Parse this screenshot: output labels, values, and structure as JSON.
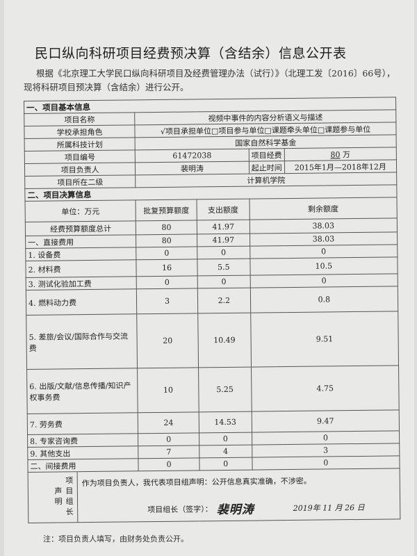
{
  "title": "民口纵向科研项目经费预决算（含结余）信息公开表",
  "intro": "根据《北京理工大学民口纵向科研项目及经费管理办法（试行）》（北理工发〔2016〕66号），现将科研项目预决算（含结余）进行公开。",
  "basic": {
    "section": "一、项目基本信息",
    "name_label": "项目名称",
    "name": "视频中事件的内容分析语义与描述",
    "role_label": "学校承担角色",
    "role": "√项目承担单位□项目参与单位□课题牵头单位□课题参与单位",
    "plan_label": "所属科技计划",
    "plan": "国家自然科学基金",
    "number_label": "项目编号",
    "number": "61472038",
    "funding_label": "项目经费",
    "funding": "80",
    "funding_unit": "万",
    "leader_label": "项目负责人",
    "leader": "裴明涛",
    "period_label": "起止时间",
    "period": "2015年1月—2018年12月",
    "dept_label": "项目所在二级",
    "dept": "计算机学院"
  },
  "budget": {
    "section": "二、项目决算信息",
    "headers": [
      "单位：万元",
      "批复预算额度",
      "支出额度",
      "剩余额度"
    ],
    "rows": [
      [
        "经费预算额度总计",
        "80",
        "41.97",
        "38.03"
      ],
      [
        "一、直接费用",
        "80",
        "41.97",
        "38.03"
      ],
      [
        "1. 设备费",
        "0",
        "0",
        "0"
      ],
      [
        "2. 材料费",
        "16",
        "5.5",
        "10.5"
      ],
      [
        "3. 测试化验加工费",
        "0",
        "0",
        "0"
      ],
      [
        "4. 燃料动力费",
        "3",
        "2.2",
        "0.8"
      ],
      [
        "5. 差旅/会议/国际合作与交流费",
        "20",
        "10.49",
        "9.51"
      ],
      [
        "6. 出版/文献/信息传播/知识产权事务费",
        "10",
        "5.25",
        "4.75"
      ],
      [
        "7. 劳务费",
        "24",
        "14.53",
        "9.47"
      ],
      [
        "8. 专家咨询费",
        "0",
        "0",
        "0"
      ],
      [
        "9. 其他支出",
        "7",
        "4",
        "3"
      ],
      [
        "二、间接费用",
        "0",
        "0",
        "0"
      ]
    ]
  },
  "declaration": {
    "label": "项目组长声明",
    "text": "作为项目负责人，我代表项目组声明：公开信息真实准确，不涉密。",
    "sign_label": "项目组长（签字）：",
    "signature": "裴明涛",
    "date": "2019年 11 月 26 日"
  },
  "note": "注：项目负责人填写，由财务处负责公开。"
}
